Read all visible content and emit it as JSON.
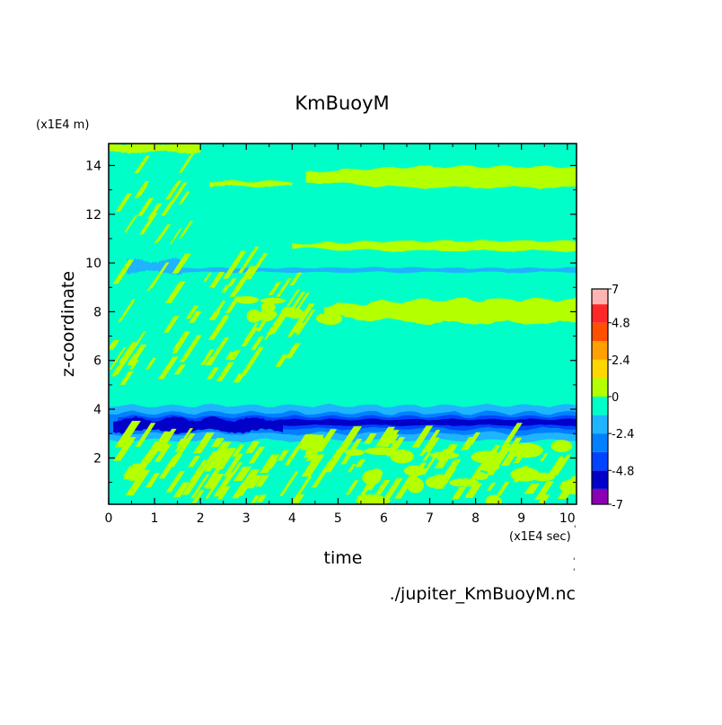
{
  "chart_data": {
    "type": "heatmap",
    "title": "KmBuoyM",
    "xlabel": "time",
    "ylabel": "z-coordinate",
    "x_unit": "(x1E4 sec)",
    "y_unit": "(x1E4 m)",
    "xlim": [
      0,
      10.2
    ],
    "ylim": [
      0.1,
      14.9
    ],
    "x_ticks": [
      "0",
      "1",
      "2",
      "3",
      "4",
      "5",
      "6",
      "7",
      "8",
      "9",
      "10"
    ],
    "y_ticks": [
      "2",
      "4",
      "6",
      "8",
      "10",
      "12",
      "14"
    ],
    "background_level": "0 to -1.2",
    "colorbar": {
      "tick_labels": [
        "7",
        "4.8",
        "2.4",
        "0",
        "-2.4",
        "-4.8",
        "-7"
      ],
      "levels": [
        -7,
        -6,
        -4.8,
        -3.6,
        -2.4,
        -1.2,
        0,
        1.2,
        2.4,
        3.6,
        4.8,
        6,
        7
      ],
      "colors": [
        "#8b00b4",
        "#0000c8",
        "#0044ff",
        "#0080ff",
        "#1eb4ff",
        "#00ffc8",
        "#b4ff00",
        "#ffd700",
        "#ffa000",
        "#ff5000",
        "#ff2828",
        "#ffb4b4"
      ]
    },
    "bands": [
      {
        "name": "positive band near z=13.5",
        "level": "0 to 1.2",
        "x": [
          2.2,
          10.2
        ],
        "z": [
          13.2,
          13.9
        ]
      },
      {
        "name": "positive band near z=10.7",
        "level": "0 to 1.2",
        "x": [
          4.0,
          10.2
        ],
        "z": [
          10.5,
          10.9
        ]
      },
      {
        "name": "negative line near z=9.7",
        "level": "-2.4 to -1.2",
        "x": [
          0.3,
          10.2
        ],
        "z": [
          9.6,
          9.8
        ]
      },
      {
        "name": "positive band near z=8.0",
        "level": "0 to 1.2",
        "x": [
          3.2,
          10.2
        ],
        "z": [
          7.6,
          8.4
        ]
      },
      {
        "name": "negative layer near z=3.5",
        "level": "-4.8 to -1.2",
        "x": [
          0,
          10.2
        ],
        "z": [
          2.7,
          4.1
        ]
      },
      {
        "name": "strongest negative core near z=3.3",
        "level": "-6 to -4.8",
        "x": [
          0,
          3.8
        ],
        "z": [
          3.1,
          3.6
        ]
      }
    ]
  },
  "footer": {
    "source_file": "./jupiter_KmBuoyM.nc"
  }
}
